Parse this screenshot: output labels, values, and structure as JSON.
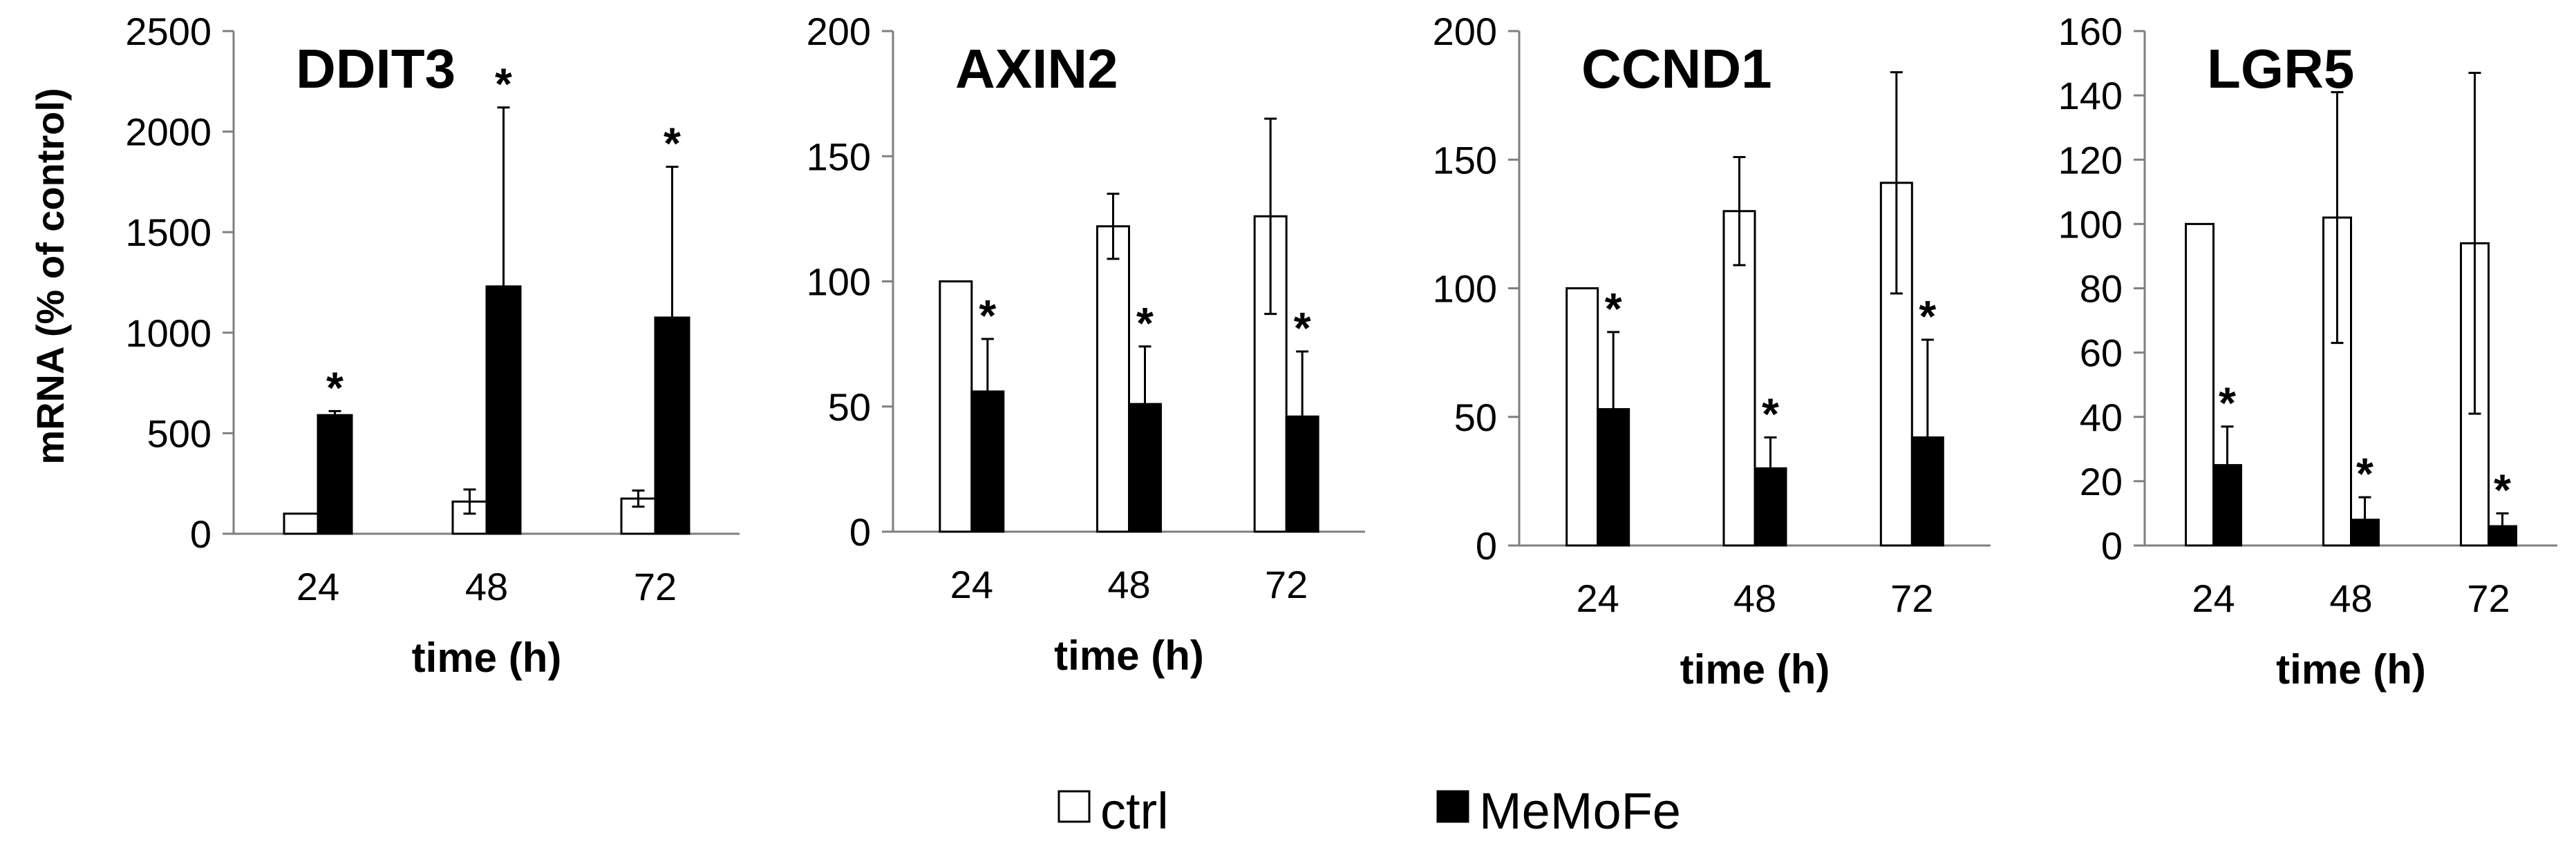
{
  "chart_data": [
    {
      "type": "bar",
      "title": "DDIT3",
      "xlabel": "time (h)",
      "ylabel": "mRNA (% of control)",
      "categories": [
        "24",
        "48",
        "72"
      ],
      "ylim": [
        0,
        2500
      ],
      "yticks": [
        0,
        500,
        1000,
        1500,
        2000,
        2500
      ],
      "series": [
        {
          "name": "ctrl",
          "values": [
            100,
            160,
            175
          ],
          "errors": [
            0,
            60,
            40
          ]
        },
        {
          "name": "MeMoFe",
          "values": [
            590,
            1230,
            1075
          ],
          "errors": [
            20,
            890,
            750
          ],
          "significant": [
            "*",
            "*",
            "*"
          ]
        }
      ]
    },
    {
      "type": "bar",
      "title": "AXIN2",
      "xlabel": "time (h)",
      "ylabel": "",
      "categories": [
        "24",
        "48",
        "72"
      ],
      "ylim": [
        0,
        200
      ],
      "yticks": [
        0,
        50,
        100,
        150,
        200
      ],
      "series": [
        {
          "name": "ctrl",
          "values": [
            100,
            122,
            126
          ],
          "errors": [
            0,
            13,
            39
          ]
        },
        {
          "name": "MeMoFe",
          "values": [
            56,
            51,
            46
          ],
          "errors": [
            21,
            23,
            26
          ],
          "significant": [
            "*",
            "*",
            "*"
          ]
        }
      ]
    },
    {
      "type": "bar",
      "title": "CCND1",
      "xlabel": "time (h)",
      "ylabel": "",
      "categories": [
        "24",
        "48",
        "72"
      ],
      "ylim": [
        0,
        200
      ],
      "yticks": [
        0,
        50,
        100,
        150,
        200
      ],
      "series": [
        {
          "name": "ctrl",
          "values": [
            100,
            130,
            141
          ],
          "errors": [
            0,
            21,
            43
          ]
        },
        {
          "name": "MeMoFe",
          "values": [
            53,
            30,
            42
          ],
          "errors": [
            30,
            12,
            38
          ],
          "significant": [
            "*",
            "*",
            "*"
          ]
        }
      ]
    },
    {
      "type": "bar",
      "title": "LGR5",
      "xlabel": "time (h)",
      "ylabel": "",
      "categories": [
        "24",
        "48",
        "72"
      ],
      "ylim": [
        0,
        160
      ],
      "yticks": [
        0,
        20,
        40,
        60,
        80,
        100,
        120,
        140,
        160
      ],
      "series": [
        {
          "name": "ctrl",
          "values": [
            100,
            102,
            94
          ],
          "errors": [
            0,
            39,
            53
          ]
        },
        {
          "name": "MeMoFe",
          "values": [
            25,
            8,
            6
          ],
          "errors": [
            12,
            7,
            4
          ],
          "significant": [
            "*",
            "*",
            "*"
          ]
        }
      ]
    }
  ],
  "legend": {
    "items": [
      {
        "label": "ctrl",
        "fill": "#ffffff"
      },
      {
        "label": "MeMoFe",
        "fill": "#000000"
      }
    ]
  },
  "colors": {
    "ctrl": "#ffffff",
    "memofe": "#000000",
    "axis": "#7f7f7f"
  }
}
